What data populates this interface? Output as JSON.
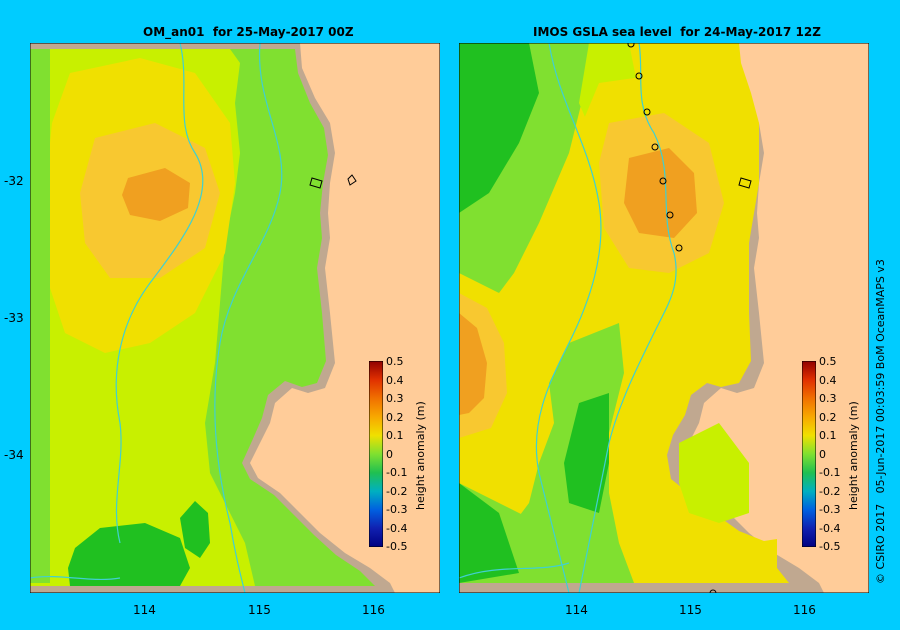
{
  "left_panel": {
    "title": "OM_an01  for 25-May-2017 00Z"
  },
  "right_panel": {
    "title": "IMOS GSLA sea level  for 24-May-2017 12Z"
  },
  "axes": {
    "y_ticks": [
      "-32",
      "-33",
      "-34"
    ],
    "x_ticks_left": [
      "114",
      "115",
      "116"
    ],
    "x_ticks_right": [
      "114",
      "115",
      "116"
    ]
  },
  "colorbar": {
    "title": "height anomaly (m)",
    "labels": [
      "0.5",
      "0.4",
      "0.3",
      "0.2",
      "0.1",
      "0",
      "-0.1",
      "-0.2",
      "-0.3",
      "-0.4",
      "-0.5"
    ]
  },
  "copyright": "© CSIRO 2017   05-Jun-2017 00:03:59 BoM OceanMAPS v3",
  "colors": {
    "background": "#00ccff",
    "land": "#ffcc99",
    "coast": "#c0a890",
    "orange": "#f0a020",
    "light_orange": "#f8c830",
    "yellow": "#f0e000",
    "yellow_green": "#c8f000",
    "light_green": "#80e030",
    "green": "#20c020",
    "contour_line": "#40d0d0"
  }
}
